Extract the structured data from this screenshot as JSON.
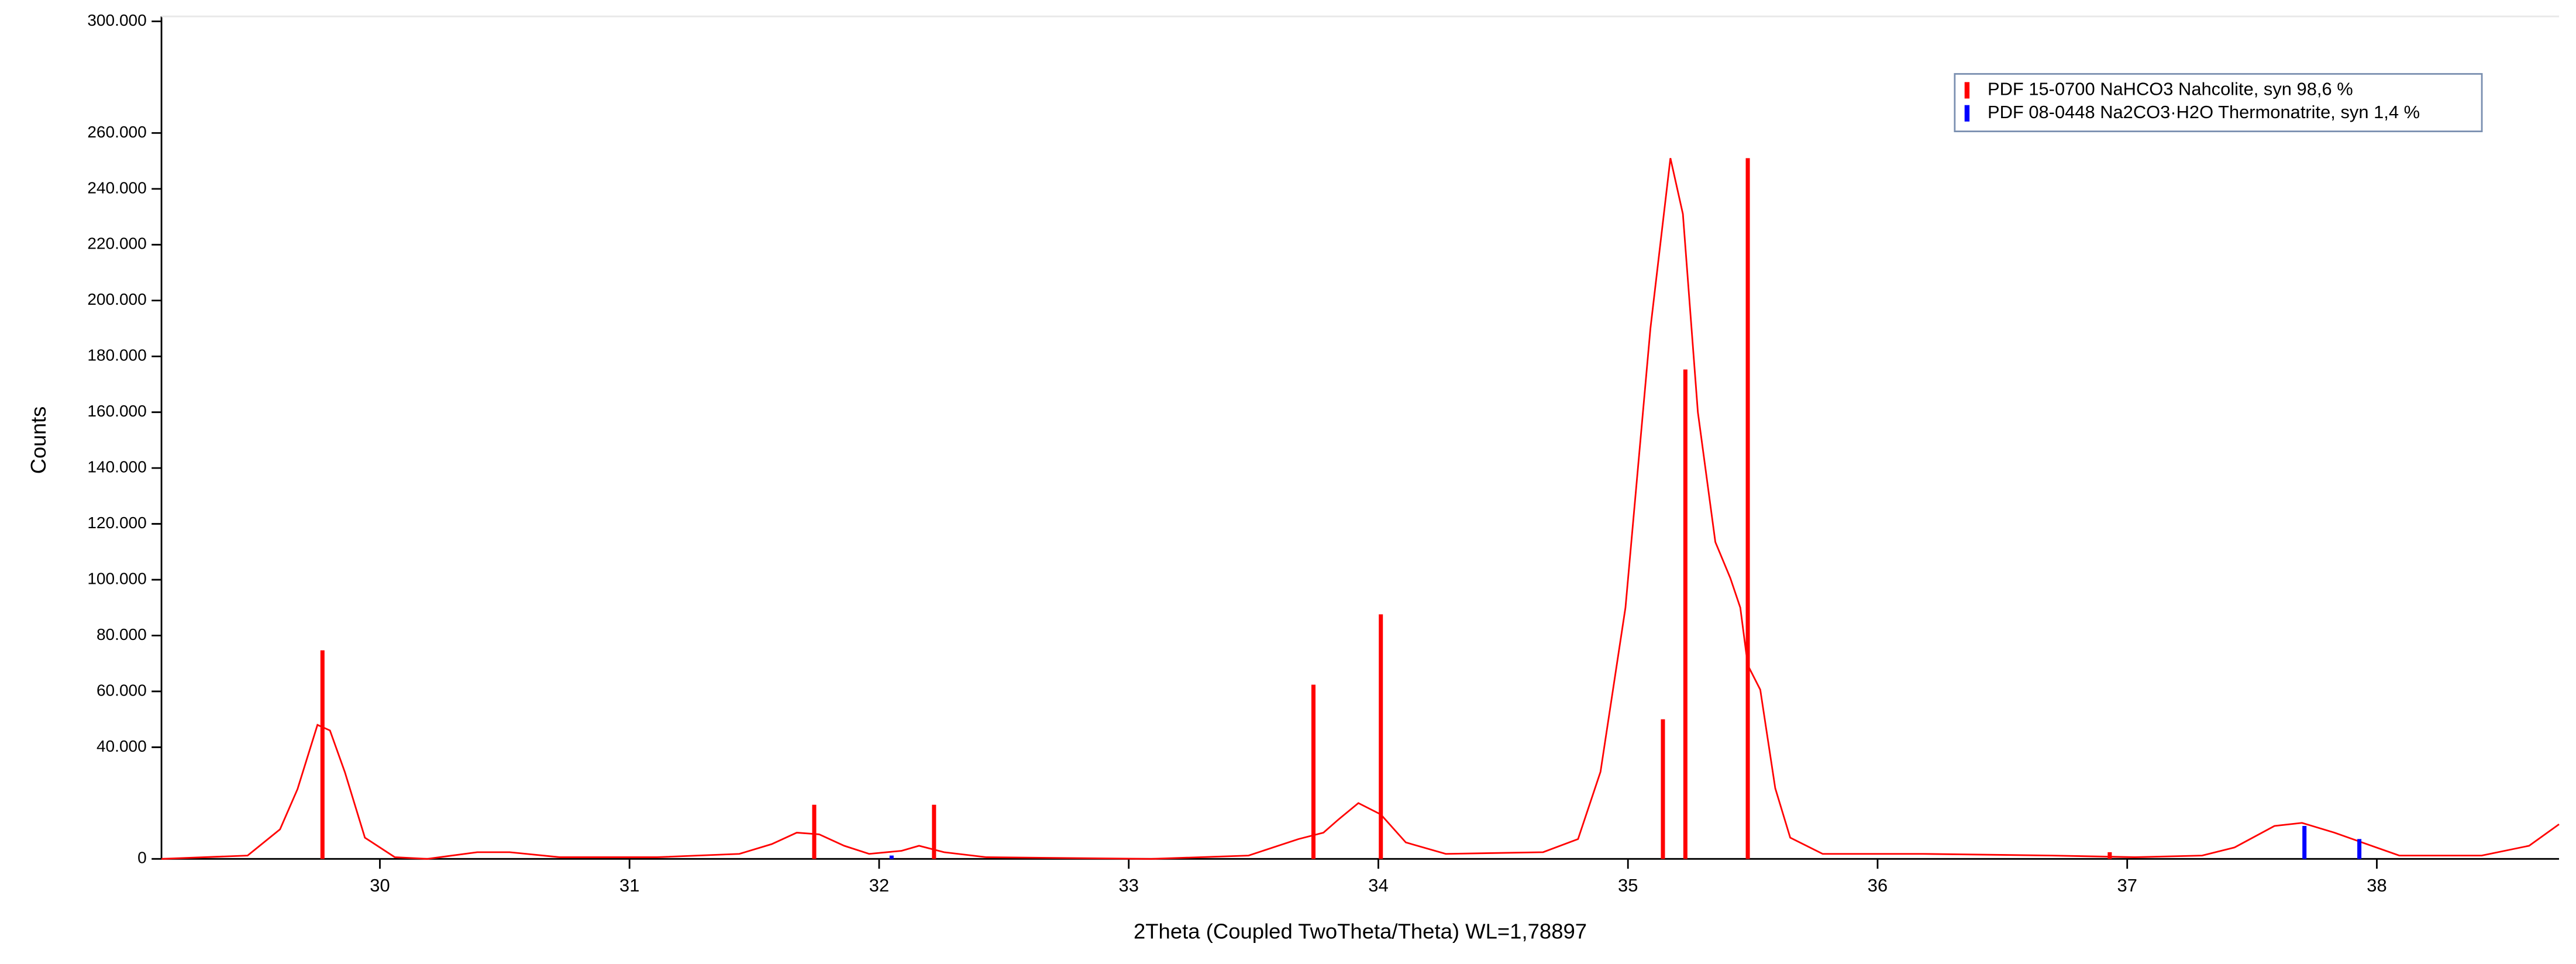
{
  "chart_data": {
    "type": "line",
    "y_label": "Counts",
    "x_label": "2Theta (Coupled TwoTheta/Theta) WL=1,78897",
    "xlim": [
      29.125,
      38.73
    ],
    "ylim": [
      0,
      300000
    ],
    "xticks": [
      30,
      31,
      32,
      33,
      34,
      35,
      36,
      37,
      38
    ],
    "yticks": [
      {
        "value": 0,
        "label": "0"
      },
      {
        "value": 40000,
        "label": "40.000"
      },
      {
        "value": 60000,
        "label": "60.000"
      },
      {
        "value": 80000,
        "label": "80.000"
      },
      {
        "value": 100000,
        "label": "100.000"
      },
      {
        "value": 120000,
        "label": "120.000"
      },
      {
        "value": 140000,
        "label": "140.000"
      },
      {
        "value": 160000,
        "label": "160.000"
      },
      {
        "value": 180000,
        "label": "180.000"
      },
      {
        "value": 200000,
        "label": "200.000"
      },
      {
        "value": 220000,
        "label": "220.000"
      },
      {
        "value": 240000,
        "label": "240.000"
      },
      {
        "value": 260000,
        "label": "260.000"
      },
      {
        "value": 300000,
        "label": "300.000"
      }
    ],
    "grid": false,
    "legend": "upper right",
    "series": [
      {
        "style": "line",
        "color": "#ff0000",
        "x": [
          29.125,
          29.47,
          29.6,
          29.67,
          29.75,
          29.8,
          29.86,
          29.94,
          30.06,
          30.19,
          30.39,
          30.52,
          30.72,
          31.11,
          31.44,
          31.57,
          31.67,
          31.76,
          31.86,
          31.96,
          32.09,
          32.16,
          32.26,
          32.43,
          33.09,
          33.48,
          33.68,
          33.78,
          33.84,
          33.92,
          34.01,
          34.11,
          34.27,
          34.66,
          34.8,
          34.89,
          34.99,
          35.09,
          35.17,
          35.22,
          35.28,
          35.35,
          35.41,
          35.45,
          35.48,
          35.53,
          35.59,
          35.65,
          35.78,
          36.18,
          36.7,
          37.03,
          37.3,
          37.43,
          37.59,
          37.7,
          37.83,
          37.96,
          38.09,
          38.42,
          38.61,
          38.73
        ],
        "values": [
          0,
          1200,
          10600,
          25000,
          48000,
          46000,
          31000,
          7600,
          600,
          0,
          2400,
          2400,
          600,
          600,
          1800,
          5300,
          9400,
          8800,
          4700,
          1800,
          2900,
          4700,
          2400,
          600,
          0,
          1200,
          7100,
          9400,
          14100,
          20000,
          15900,
          5900,
          1800,
          2400,
          7100,
          31200,
          90000,
          190000,
          251000,
          231000,
          160000,
          113500,
          100600,
          90000,
          69400,
          60600,
          25300,
          7600,
          1800,
          1800,
          1200,
          600,
          1200,
          4100,
          11800,
          12900,
          9400,
          5300,
          1200,
          1200,
          4700,
          12400
        ]
      },
      {
        "style": "stick",
        "name": "PDF 15-0700 NaHCO3 Nahcolite, syn 98,6 %",
        "color": "#ff0000",
        "x": [
          29.77,
          31.74,
          32.22,
          33.74,
          34.01,
          35.14,
          35.23,
          35.48,
          36.93
        ],
        "values": [
          74700,
          19400,
          19400,
          62400,
          87600,
          50000,
          175300,
          251000,
          2400
        ]
      },
      {
        "style": "stick",
        "name": "PDF 08-0448 Na2CO3·H2O Thermonatrite, syn 1,4 %",
        "color": "#0000ff",
        "x": [
          32.05,
          37.71,
          37.93
        ],
        "values": [
          1200,
          11800,
          7100
        ]
      }
    ]
  }
}
